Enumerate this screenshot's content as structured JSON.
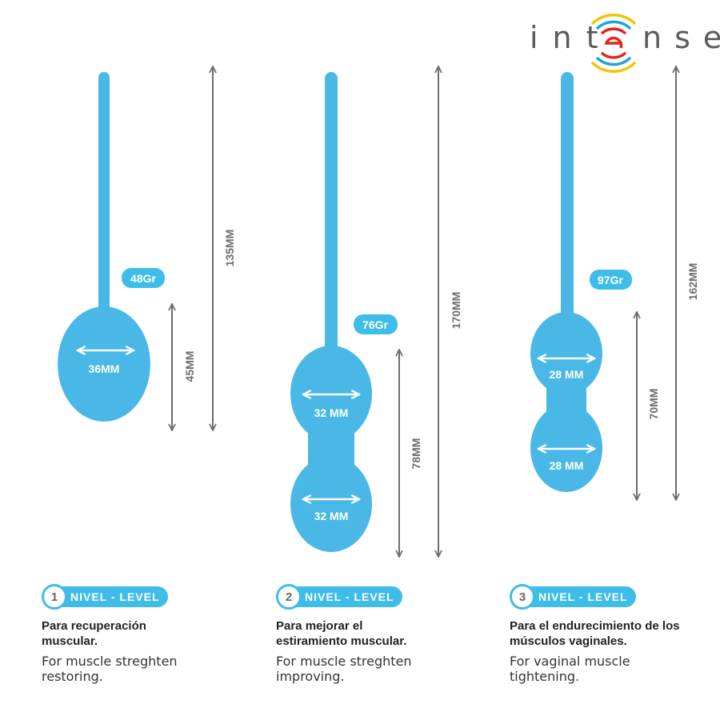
{
  "brand": {
    "logo_text": "intense",
    "colors": {
      "letters": "#5a5a5f",
      "red": "#e2261d",
      "blue": "#1ea4dd",
      "yellow": "#f5c400"
    }
  },
  "colors": {
    "product": "#4ab8e6",
    "accent": "#3ebde9",
    "dimension": "#6d6d6d"
  },
  "products": [
    {
      "weight": "48Gr",
      "ball_labels": [
        "36MM"
      ],
      "ball_length": "45MM",
      "total_length": "135MM"
    },
    {
      "weight": "76Gr",
      "ball_labels": [
        "32 MM",
        "32 MM"
      ],
      "ball_length": "78MM",
      "total_length": "170MM"
    },
    {
      "weight": "97Gr",
      "ball_labels": [
        "28 MM",
        "28 MM"
      ],
      "ball_length": "70MM",
      "total_length": "162MM"
    }
  ],
  "levels": [
    {
      "number": "1",
      "badge": "NIVEL - LEVEL",
      "spanish": "Para recuperación muscular.",
      "english": "For muscle streghten restoring."
    },
    {
      "number": "2",
      "badge": "NIVEL - LEVEL",
      "spanish": "Para mejorar el estiramiento muscular.",
      "english": "For muscle streghten improving."
    },
    {
      "number": "3",
      "badge": "NIVEL - LEVEL",
      "spanish": "Para el endurecimiento de los músculos vaginales.",
      "english": "For vaginal muscle tightening."
    }
  ]
}
